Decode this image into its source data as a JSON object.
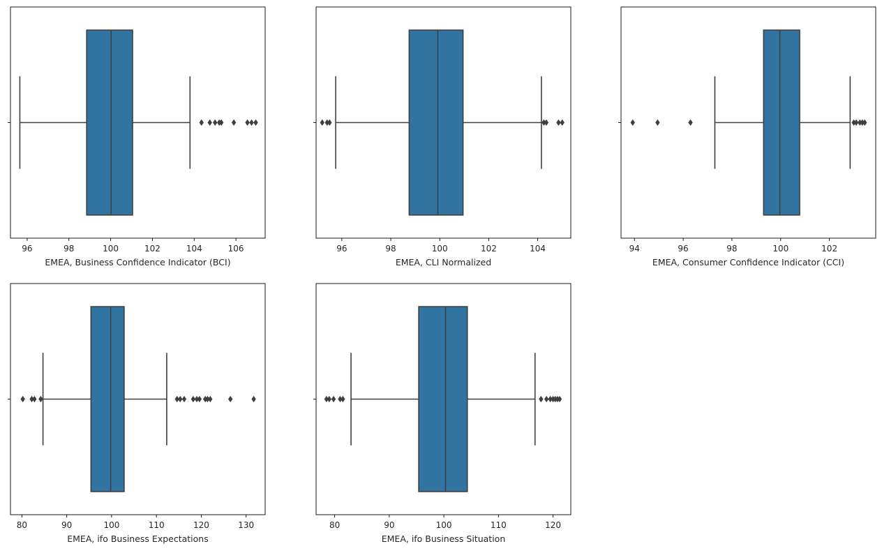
{
  "chart_data": [
    {
      "type": "box",
      "xlabel": "EMEA, Business Confidence Indicator (BCI)",
      "xlim": [
        95.2,
        107.4
      ],
      "xticks": [
        96,
        98,
        100,
        102,
        104,
        106
      ],
      "box": {
        "whisker_low": 95.65,
        "q1": 98.85,
        "median": 100.02,
        "q3": 101.05,
        "whisker_high": 103.8
      },
      "outliers": [
        104.35,
        104.75,
        105.0,
        105.2,
        105.3,
        105.9,
        106.55,
        106.75,
        106.95
      ],
      "grid": false
    },
    {
      "type": "box",
      "xlabel": "EMEA, CLI Normalized",
      "xlim": [
        94.95,
        105.35
      ],
      "xticks": [
        96,
        98,
        100,
        102,
        104
      ],
      "box": {
        "whisker_low": 95.75,
        "q1": 98.75,
        "median": 99.92,
        "q3": 100.95,
        "whisker_high": 104.15
      },
      "outliers": [
        95.2,
        95.4,
        95.5,
        104.25,
        104.35,
        104.85,
        105.0
      ],
      "grid": false
    },
    {
      "type": "box",
      "xlabel": "EMEA, Consumer Confidence Indicator (CCI)",
      "xlim": [
        93.45,
        103.9
      ],
      "xticks": [
        94,
        96,
        98,
        100,
        102
      ],
      "box": {
        "whisker_low": 97.3,
        "q1": 99.3,
        "median": 99.97,
        "q3": 100.78,
        "whisker_high": 102.85
      },
      "outliers": [
        93.93,
        94.95,
        96.3,
        103.0,
        103.1,
        103.25,
        103.35,
        103.45
      ],
      "grid": false
    },
    {
      "type": "box",
      "xlabel": "EMEA, ifo Business Expectations",
      "xlim": [
        77.45,
        134.25
      ],
      "xticks": [
        80,
        90,
        100,
        110,
        120,
        130
      ],
      "box": {
        "whisker_low": 84.7,
        "q1": 95.4,
        "median": 99.8,
        "q3": 102.8,
        "whisker_high": 112.3
      },
      "outliers": [
        80.2,
        82.2,
        82.8,
        84.2,
        114.6,
        115.3,
        116.2,
        118.2,
        119.0,
        119.6,
        120.9,
        121.4,
        122.0,
        126.5,
        131.7
      ],
      "grid": false
    },
    {
      "type": "box",
      "xlabel": "EMEA, ifo Business Situation",
      "xlim": [
        76.6,
        123.25
      ],
      "xticks": [
        80,
        90,
        100,
        110,
        120
      ],
      "box": {
        "whisker_low": 83.0,
        "q1": 95.4,
        "median": 100.3,
        "q3": 104.3,
        "whisker_high": 116.7
      },
      "outliers": [
        78.5,
        79.0,
        79.8,
        81.0,
        81.5,
        117.8,
        118.8,
        119.5,
        120.0,
        120.4,
        120.8,
        121.2
      ],
      "grid": false
    }
  ],
  "style": {
    "box_fill": "#3274a1",
    "line_color": "#3f3f3f",
    "axis_color": "#000000",
    "text_color": "#262626"
  }
}
